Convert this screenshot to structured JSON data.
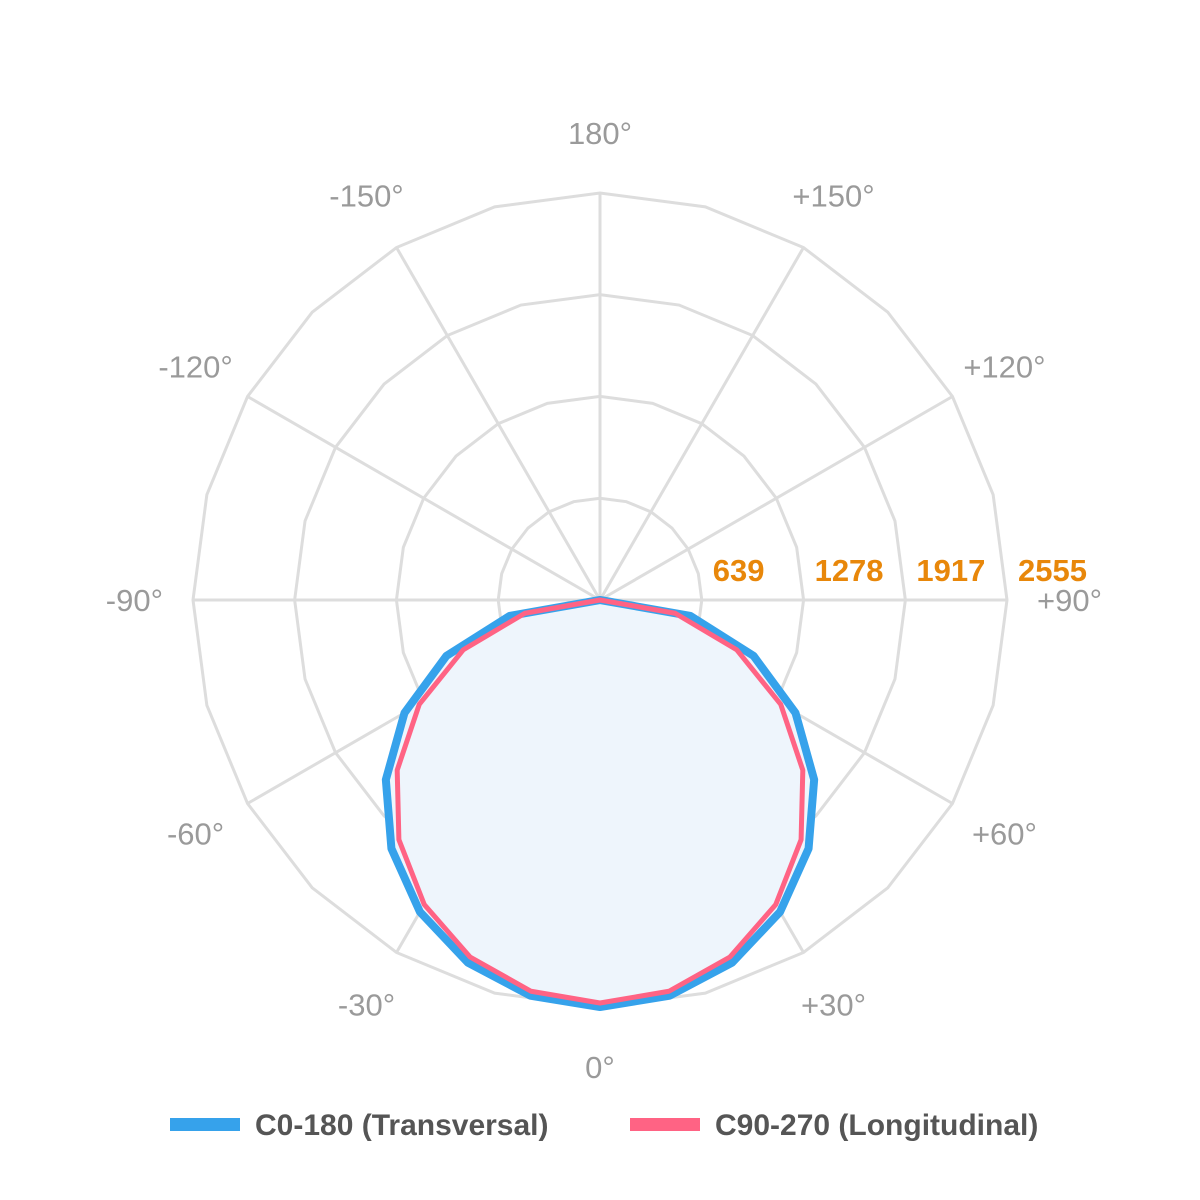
{
  "chart_data": {
    "type": "polar-line",
    "angle_zero": "bottom",
    "angle_direction": "positive toward right",
    "angle_ticks": [
      "0°",
      "+30°",
      "+60°",
      "+90°",
      "+120°",
      "+150°",
      "180°",
      "-150°",
      "-120°",
      "-90°",
      "-60°",
      "-30°"
    ],
    "angle_tick_values": [
      0,
      30,
      60,
      90,
      120,
      150,
      180,
      -150,
      -120,
      -90,
      -60,
      -30
    ],
    "radial_ticks": [
      "639",
      "1278",
      "1917",
      "2555"
    ],
    "radial_tick_values": [
      639,
      1278,
      1917,
      2555
    ],
    "rmax": 2555,
    "grid": true,
    "legend_position": "bottom",
    "angles": [
      -90,
      -80,
      -70,
      -60,
      -50,
      -40,
      -30,
      -20,
      -10,
      0,
      10,
      20,
      30,
      40,
      50,
      60,
      70,
      80,
      90
    ],
    "series": [
      {
        "name": "C0-180 (Transversal)",
        "color": "#36a2eb",
        "fill": "#eef5fc",
        "values": [
          0,
          577,
          1026,
          1417,
          1755,
          2037,
          2261,
          2423,
          2522,
          2555,
          2522,
          2423,
          2261,
          2037,
          1755,
          1417,
          1026,
          577,
          0
        ]
      },
      {
        "name": "C90-270 (Longitudinal)",
        "color": "#ff6384",
        "values": [
          0,
          479,
          913,
          1310,
          1662,
          1964,
          2207,
          2385,
          2494,
          2530,
          2494,
          2385,
          2207,
          1964,
          1662,
          1310,
          913,
          479,
          0
        ]
      }
    ],
    "colors": {
      "grid": "#dddddd",
      "angle_label": "#9a9a9a",
      "radial_label": "#e8870a",
      "legend_text": "#555555"
    }
  }
}
